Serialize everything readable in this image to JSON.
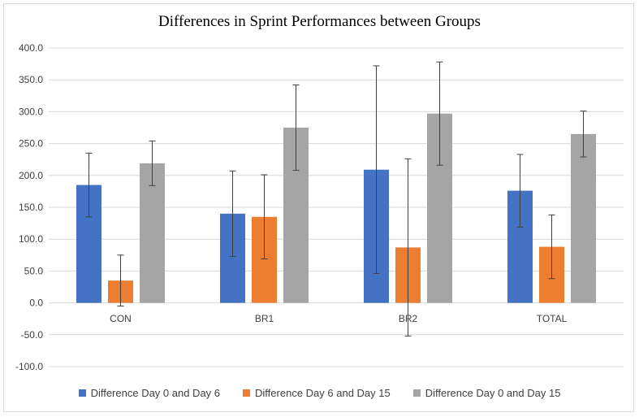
{
  "chart_data": {
    "type": "bar",
    "title": "Differences in Sprint Performances between Groups",
    "categories": [
      "CON",
      "BR1",
      "BR2",
      "TOTAL"
    ],
    "series": [
      {
        "name": "Difference Day 0 and Day 6",
        "color": "#4472c4",
        "values": [
          185,
          140,
          209,
          176
        ],
        "error": [
          50,
          67,
          163,
          57
        ]
      },
      {
        "name": "Difference Day 6 and Day 15",
        "color": "#ed7d31",
        "values": [
          35,
          135,
          87,
          88
        ],
        "error": [
          40,
          66,
          139,
          50
        ]
      },
      {
        "name": "Difference Day 0 and Day 15",
        "color": "#a5a5a5",
        "values": [
          219,
          275,
          297,
          265
        ],
        "error": [
          35,
          67,
          81,
          36
        ]
      }
    ],
    "yticks": [
      "400.0",
      "350.0",
      "300.0",
      "250.0",
      "200.0",
      "150.0",
      "100.0",
      "50.0",
      "0.0",
      "-50.0",
      "-100.0"
    ],
    "ylim": [
      -100,
      400
    ],
    "grid": true,
    "legend_position": "bottom"
  }
}
